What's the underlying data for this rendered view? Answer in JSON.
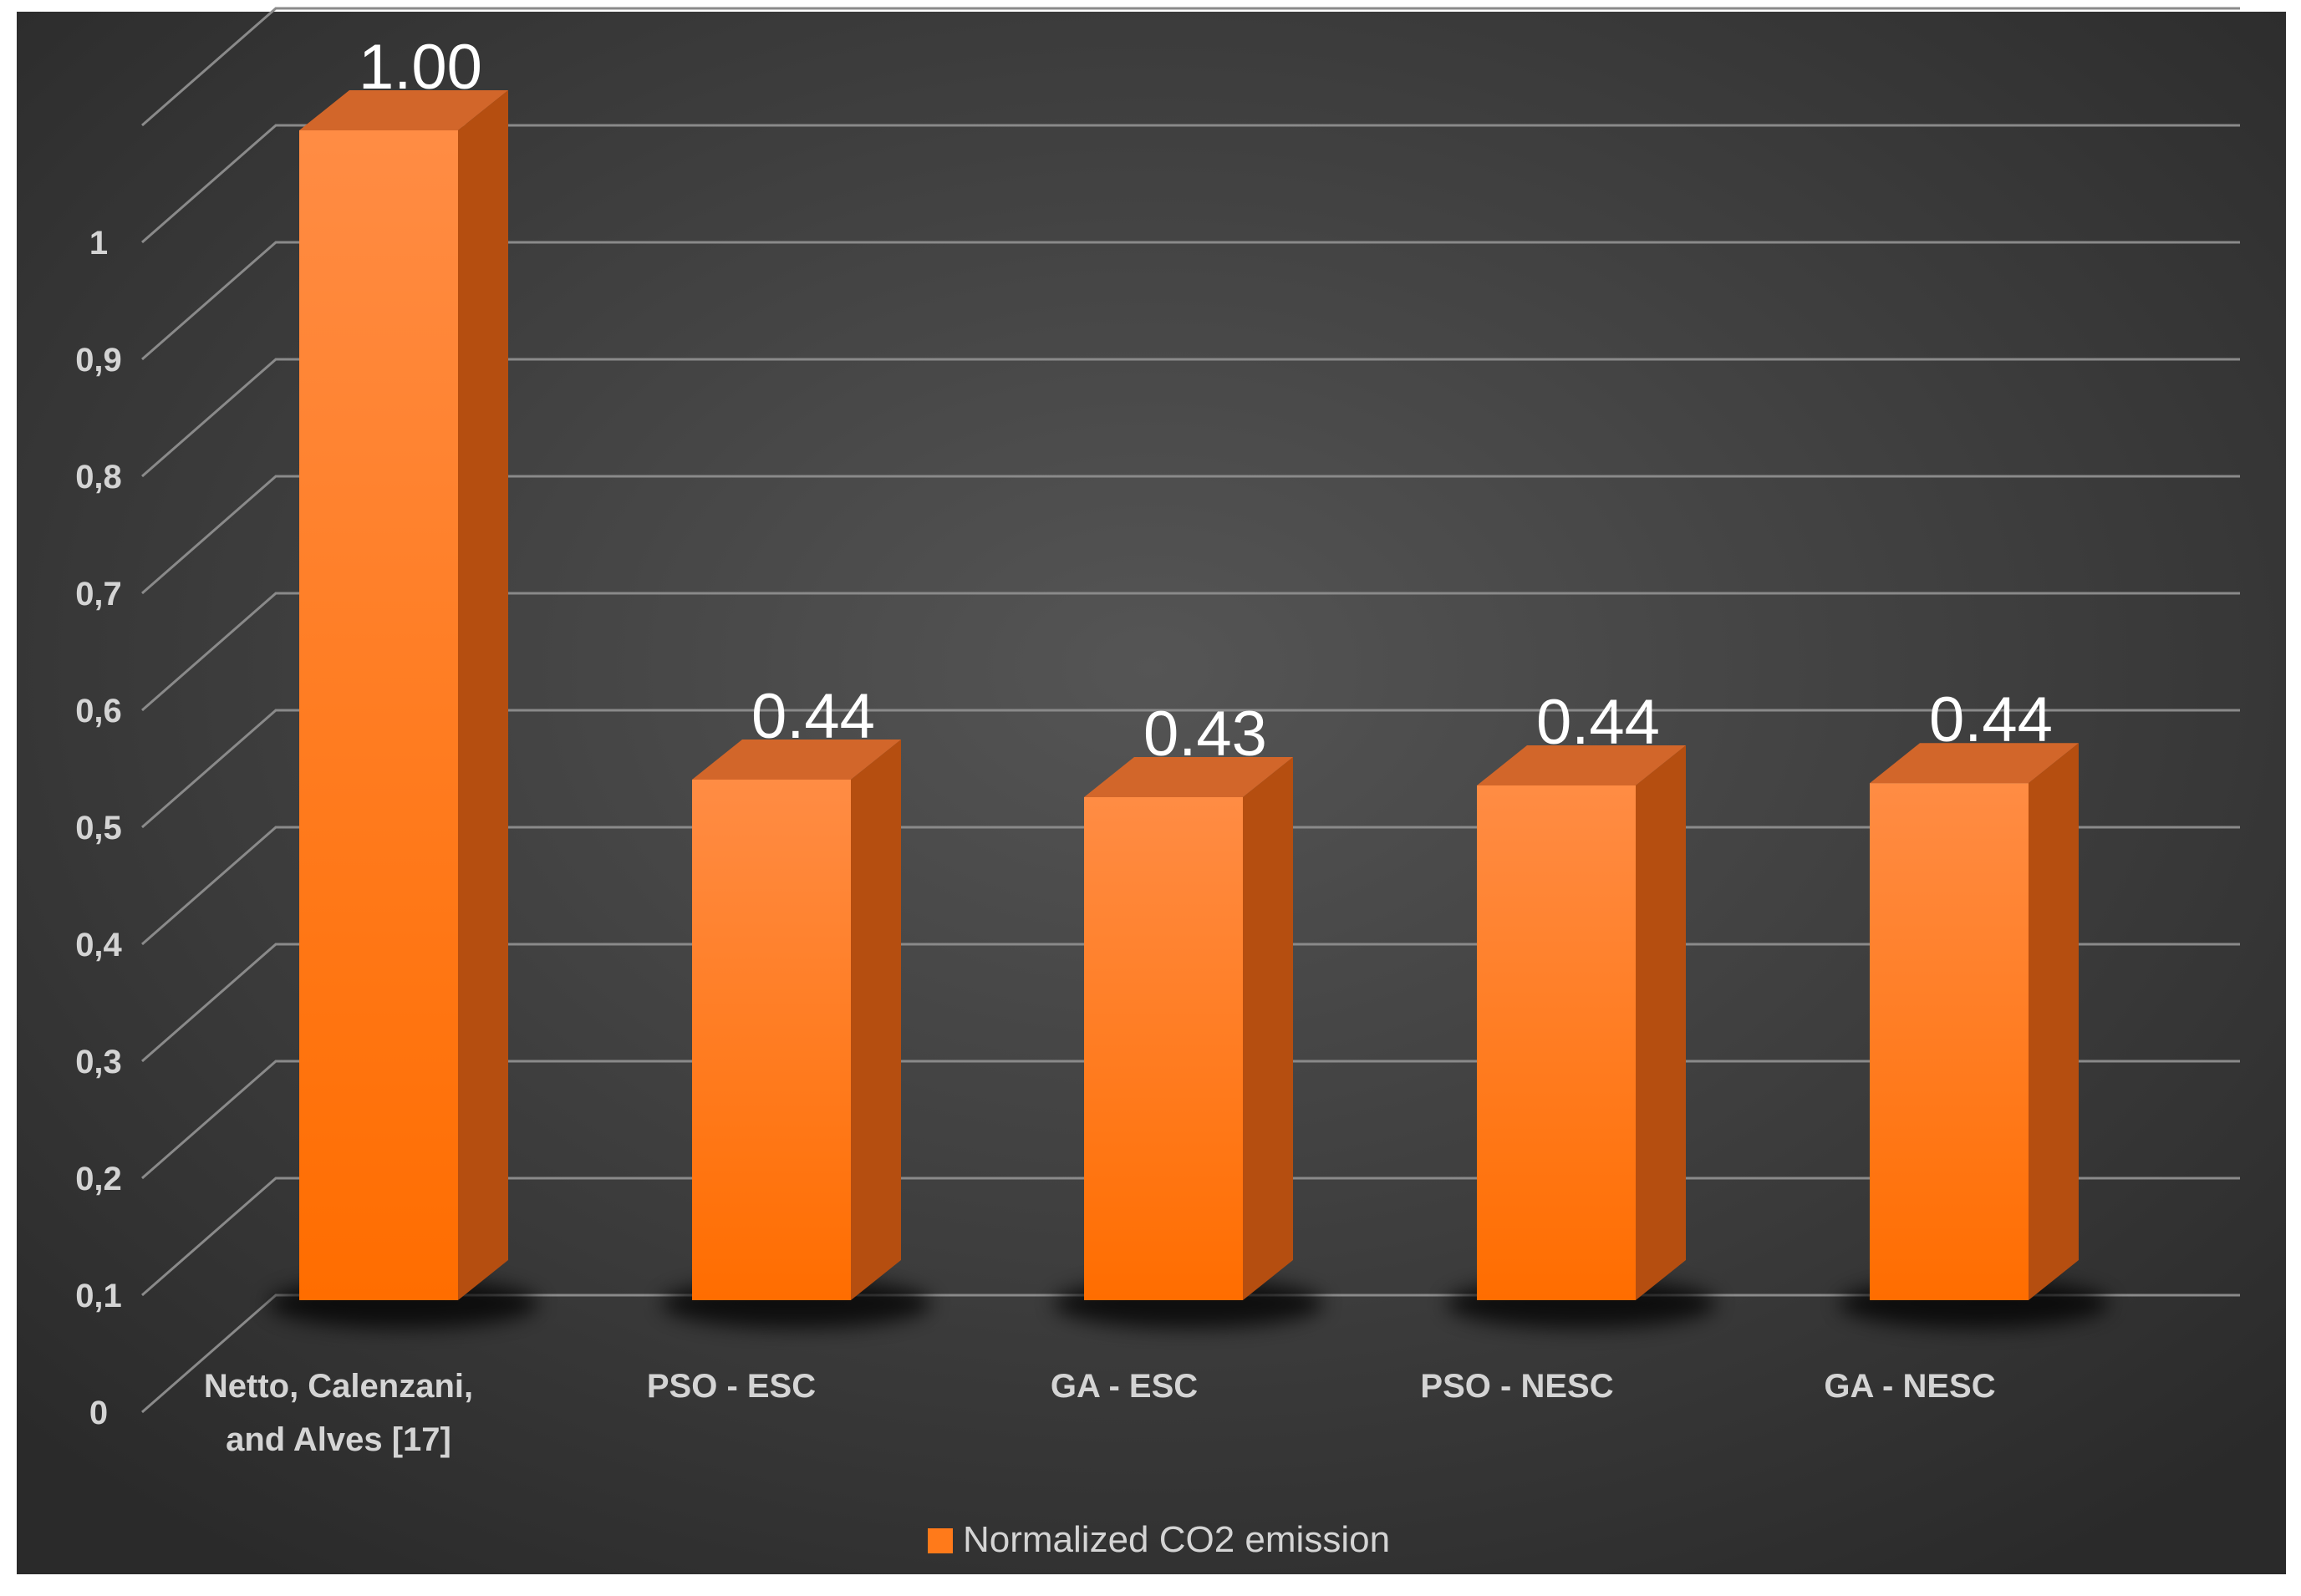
{
  "chart_data": {
    "type": "bar",
    "title": "",
    "xlabel": "",
    "ylabel": "",
    "categories": [
      "Netto, Calenzani, and Alves [17]",
      "PSO - ESC",
      "GA - ESC",
      "PSO - NESC",
      "GA - NESC"
    ],
    "category_lines": [
      [
        "Netto, Calenzani,",
        "and Alves [17]"
      ],
      [
        "PSO - ESC"
      ],
      [
        "GA - ESC"
      ],
      [
        "PSO - NESC"
      ],
      [
        "GA - NESC"
      ]
    ],
    "series": [
      {
        "name": "Normalized CO2 emission",
        "values": [
          1.0,
          0.445,
          0.43,
          0.44,
          0.442
        ],
        "data_labels": [
          "1.00",
          "0.44",
          "0.43",
          "0.44",
          "0.44"
        ],
        "color": "#ff7a1a"
      }
    ],
    "y_ticks": [
      "0",
      "0,1",
      "0,2",
      "0,3",
      "0,4",
      "0,5",
      "0,6",
      "0,7",
      "0,8",
      "0,9",
      "1"
    ],
    "ylim": [
      0,
      1.1
    ],
    "grid": true,
    "legend": "bottom-center",
    "style": "3d-column",
    "background": "#3c3c3c"
  }
}
